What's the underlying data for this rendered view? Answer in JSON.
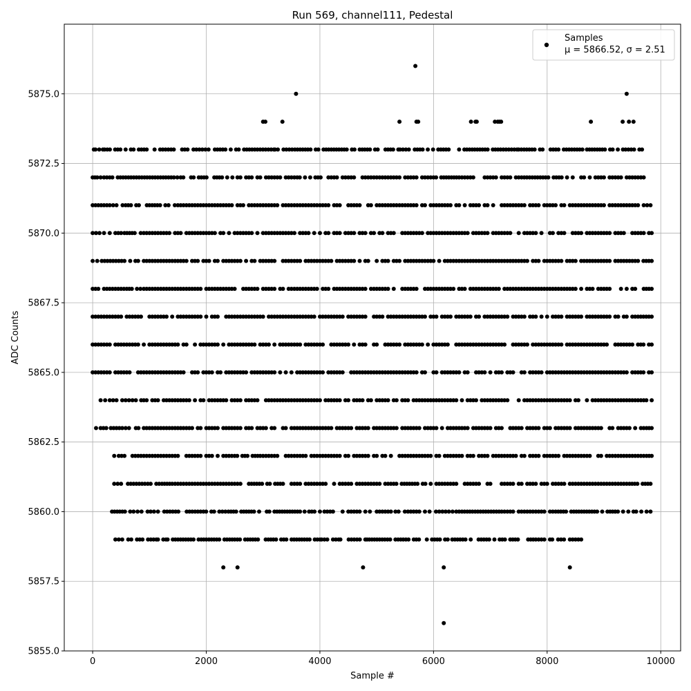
{
  "chart_data": {
    "type": "scatter",
    "title": "Run 569, channel111, Pedestal",
    "xlabel": "Sample #",
    "ylabel": "ADC Counts",
    "xlim": [
      -500,
      10350
    ],
    "ylim": [
      5855.0,
      5877.5
    ],
    "grid": true,
    "legend_placement": "upper-right",
    "marker_color": "#000000",
    "x_ticks": [
      0,
      2000,
      4000,
      6000,
      8000,
      10000
    ],
    "x_tick_labels": [
      "0",
      "2000",
      "4000",
      "6000",
      "8000",
      "10000"
    ],
    "y_ticks": [
      5855.0,
      5857.5,
      5860.0,
      5862.5,
      5865.0,
      5867.5,
      5870.0,
      5872.5,
      5875.0
    ],
    "y_tick_labels": [
      "5855.0",
      "5857.5",
      "5860.0",
      "5862.5",
      "5865.0",
      "5867.5",
      "5870.0",
      "5872.5",
      "5875.0"
    ],
    "series": [
      {
        "name": "Samples",
        "stats_label": "μ = 5866.52, σ = 2.51",
        "mean": 5866.52,
        "sigma": 2.51,
        "x_range": [
          0,
          9840
        ],
        "sample_count": 9840,
        "points_by_level": [
          {
            "y": 5876,
            "x": [
              5680
            ]
          },
          {
            "y": 5875,
            "x": [
              3580,
              9400
            ]
          },
          {
            "y": 5874,
            "x": [
              3000,
              3040,
              3340,
              5400,
              5700,
              5730,
              6660,
              6740,
              6760,
              7080,
              7130,
              7160,
              7190,
              8770,
              9330,
              9440,
              9520
            ]
          },
          {
            "y": 5873,
            "x": [
              20,
              50,
              180,
              210,
              1090,
              1670,
              1930,
              2150,
              2430,
              2900,
              3190,
              3210,
              3560,
              4110,
              5380,
              5410,
              5670,
              6680,
              7180,
              7470,
              7500,
              8620,
              8700,
              9380,
              9530,
              9670
            ]
          },
          {
            "y": 5872,
            "x": [
              0,
              40,
              80,
              200,
              250,
              300,
              1100,
              1430,
              1550,
              2550,
              2600,
              2750,
              2900,
              3050,
              3250,
              3400,
              3600,
              4150,
              4200,
              4550,
              4850,
              5100,
              5400,
              5500,
              5650,
              5800,
              6000,
              6450,
              6600,
              6700,
              6950,
              7050,
              7200,
              7350,
              7450,
              7550,
              8350,
              8600,
              8750,
              8950,
              9100,
              9300,
              9450,
              9600,
              9700
            ]
          },
          {
            "y": 5871,
            "x": [
              0,
              50,
              100,
              150,
              200,
              250,
              300,
              420,
              580,
              1280,
              1500,
              1550,
              1650,
              1750,
              1950,
              2000,
              2400,
              2600,
              2800,
              3000,
              3200,
              3400,
              3650,
              3900,
              4100,
              4300,
              4500,
              4700,
              4900,
              5100,
              5300,
              5500,
              5700,
              5850,
              6050,
              6250,
              6550,
              6700,
              6900,
              7050,
              7250,
              7400,
              7550,
              7750,
              8100,
              8300,
              8550,
              8650,
              8850,
              9100,
              9300,
              9500,
              9700,
              9820
            ]
          },
          {
            "y": 5870,
            "x": [
              0,
              60,
              120,
              200,
              300,
              400,
              500,
              560,
              740,
              900,
              1100,
              1300,
              1500,
              1700,
              1900,
              2100,
              2300,
              2500,
              2700,
              2900,
              3100,
              3300,
              3500,
              3700,
              3900,
              4100,
              4300,
              4500,
              4700,
              4900,
              5100,
              5300,
              5500,
              5700,
              5900,
              6100,
              6300,
              6500,
              6700,
              6900,
              7100,
              7300,
              7500,
              7700,
              7900,
              8100,
              8300,
              8500,
              8700,
              8900,
              9100,
              9300,
              9500,
              9700,
              9840
            ]
          },
          {
            "y": 5869,
            "x": [
              0,
              80,
              160,
              260,
              360,
              460,
              560,
              660,
              800,
              1000,
              1200,
              1400,
              1600,
              1800,
              2000,
              2200,
              2400,
              2600,
              2800,
              3000,
              3200,
              3400,
              3600,
              3800,
              4000,
              4200,
              4400,
              4600,
              4800,
              5000,
              5200,
              5400,
              5600,
              5800,
              6000,
              6200,
              6400,
              6600,
              6800,
              7000,
              7200,
              7400,
              7600,
              7800,
              8000,
              8200,
              8400,
              8600,
              8800,
              9000,
              9200,
              9400,
              9600,
              9840
            ]
          },
          {
            "y": 5868,
            "x": [
              0,
              100,
              200,
              300,
              400,
              500,
              600,
              780,
              900,
              1100,
              1300,
              1500,
              1700,
              1900,
              2100,
              2300,
              2500,
              2700,
              2900,
              3100,
              3300,
              3500,
              3700,
              3900,
              4100,
              4300,
              4500,
              4700,
              4900,
              5100,
              5300,
              5500,
              5700,
              5900,
              6100,
              6300,
              6500,
              6700,
              6900,
              7100,
              7300,
              7500,
              7700,
              7900,
              8100,
              8300,
              8500,
              8700,
              8900,
              9100,
              9300,
              9500,
              9700,
              9840
            ]
          },
          {
            "y": 5867,
            "x": [
              0,
              100,
              200,
              300,
              400,
              500,
              600,
              800,
              1000,
              1200,
              1400,
              1600,
              1800,
              2000,
              2200,
              2400,
              2600,
              2800,
              3000,
              3200,
              3400,
              3600,
              3800,
              4000,
              4200,
              4400,
              4600,
              4800,
              5000,
              5200,
              5400,
              5600,
              5800,
              6000,
              6200,
              6400,
              6600,
              6800,
              7000,
              7200,
              7400,
              7600,
              7800,
              8000,
              8200,
              8400,
              8600,
              8800,
              9000,
              9200,
              9400,
              9600,
              9840
            ]
          },
          {
            "y": 5866,
            "x": [
              0,
              100,
              200,
              300,
              400,
              500,
              600,
              800,
              1000,
              1200,
              1400,
              1600,
              1800,
              2000,
              2200,
              2400,
              2600,
              2800,
              3000,
              3200,
              3400,
              3600,
              3800,
              4000,
              4200,
              4400,
              4600,
              4800,
              5000,
              5200,
              5400,
              5600,
              5800,
              6000,
              6200,
              6400,
              6600,
              6800,
              7000,
              7200,
              7400,
              7600,
              7800,
              8000,
              8200,
              8400,
              8600,
              8800,
              9000,
              9200,
              9400,
              9600,
              9840
            ]
          },
          {
            "y": 5865,
            "x": [
              0,
              100,
              200,
              300,
              400,
              500,
              600,
              800,
              1000,
              1200,
              1400,
              1600,
              1800,
              2000,
              2200,
              2400,
              2600,
              2800,
              3000,
              3200,
              3400,
              3600,
              3800,
              4000,
              4200,
              4400,
              4600,
              4800,
              5000,
              5200,
              5400,
              5600,
              5800,
              6000,
              6200,
              6400,
              6600,
              6800,
              7000,
              7200,
              7400,
              7600,
              7800,
              8000,
              8200,
              8400,
              8600,
              8800,
              9000,
              9200,
              9400,
              9600,
              9840
            ]
          },
          {
            "y": 5864,
            "x": [
              140,
              220,
              300,
              420,
              520,
              640,
              760,
              900,
              1100,
              1300,
              1500,
              1700,
              1900,
              2100,
              2300,
              2500,
              2700,
              2900,
              3100,
              3300,
              3500,
              3700,
              3900,
              4100,
              4300,
              4500,
              4700,
              4900,
              5100,
              5300,
              5500,
              5700,
              5900,
              6100,
              6300,
              6500,
              6700,
              6900,
              7100,
              7300,
              7500,
              7700,
              7900,
              8100,
              8300,
              8500,
              8700,
              8900,
              9100,
              9300,
              9500,
              9700,
              9840
            ]
          },
          {
            "y": 5863,
            "x": [
              60,
              140,
              240,
              320,
              420,
              520,
              640,
              760,
              900,
              1100,
              1300,
              1500,
              1700,
              1900,
              2100,
              2300,
              2500,
              2700,
              2900,
              3150,
              3350,
              3550,
              3750,
              3950,
              4150,
              4350,
              4550,
              4750,
              4950,
              5150,
              5350,
              5550,
              5750,
              5950,
              6150,
              6350,
              6550,
              6750,
              6950,
              7150,
              7350,
              7550,
              7750,
              7950,
              8150,
              8350,
              8550,
              8750,
              8950,
              9150,
              9350,
              9550,
              9750,
              9840
            ]
          },
          {
            "y": 5862,
            "x": [
              380,
              460,
              560,
              700,
              800,
              900,
              1050,
              1150,
              1250,
              1350,
              1500,
              1650,
              1750,
              1900,
              2050,
              2200,
              2350,
              2500,
              2950,
              3250,
              3400,
              3550,
              3700,
              3850,
              4000,
              4150,
              4300,
              4500,
              4650,
              4800,
              4950,
              5100,
              5250,
              5400,
              5600,
              5850,
              6050,
              6250,
              6450,
              6650,
              6850,
              7250,
              7400,
              7600,
              7800,
              8000,
              8200,
              8400,
              8550,
              8700,
              8950,
              9150,
              9350,
              9550,
              9750,
              9840
            ]
          },
          {
            "y": 5861,
            "x": [
              380,
              500,
              620,
              720,
              820,
              920,
              1020,
              1120,
              1220,
              1400,
              1600,
              1750,
              1850,
              2000,
              2150,
              2300,
              2450,
              2750,
              3350,
              3650,
              3800,
              3950,
              4100,
              4250,
              4400,
              4550,
              4700,
              4850,
              5000,
              5150,
              5300,
              5950,
              6100,
              6250,
              6400,
              6600,
              6750,
              6950,
              7200,
              7350,
              7500,
              7650,
              7800,
              7950,
              8150,
              8300,
              8500,
              8700,
              8950,
              9100,
              9450,
              9820
            ]
          },
          {
            "y": 5860,
            "x": [
              340,
              660,
              720,
              790,
              860,
              1020,
              1080,
              1150,
              1260,
              1410,
              1900,
              1950,
              2230,
              2390,
              3650,
              3730,
              3810,
              4000,
              4080,
              4230,
              4400,
              4800,
              4880,
              5000,
              5250,
              5330,
              5550,
              5850,
              5930,
              6100,
              6270,
              6400,
              6500,
              7200,
              7350,
              7650,
              7800,
              7950,
              8050,
              8150,
              8970,
              9750,
              9820
            ]
          },
          {
            "y": 5859,
            "x": [
              400,
              520,
              680,
              780,
              1120,
              1150,
              1290,
              1320,
              4000,
              4030,
              4330,
              4360,
              4800,
              4830,
              4870,
              5050,
              5330,
              6250,
              6330,
              7350,
              7800,
              8050,
              8090,
              8400,
              8600
            ]
          },
          {
            "y": 5858,
            "x": [
              2300,
              2550,
              4760,
              6180,
              8400
            ]
          },
          {
            "y": 5856,
            "x": [
              6180
            ]
          }
        ]
      }
    ]
  }
}
